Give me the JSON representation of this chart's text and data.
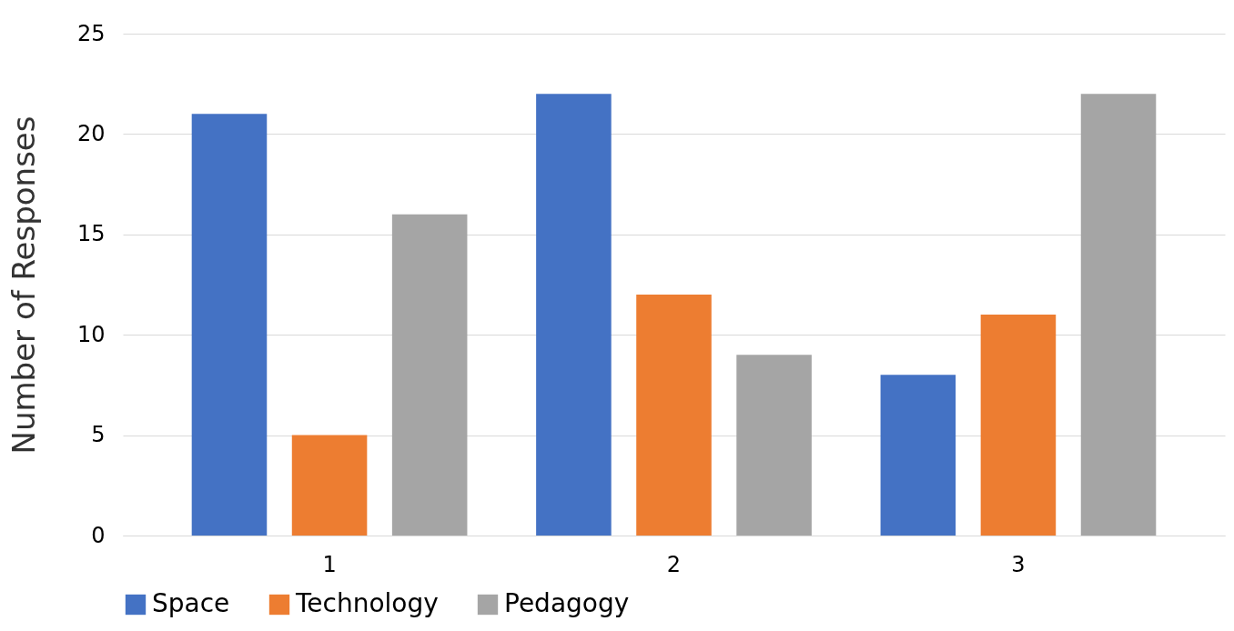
{
  "chart_data": {
    "type": "bar",
    "ylabel": "Number of Responses",
    "categories": [
      "1",
      "2",
      "3"
    ],
    "series": [
      {
        "name": "Space",
        "color": "#4472c4",
        "values": [
          21,
          22,
          8
        ]
      },
      {
        "name": "Technology",
        "color": "#ed7d31",
        "values": [
          5,
          12,
          11
        ]
      },
      {
        "name": "Pedagogy",
        "color": "#a5a5a5",
        "values": [
          16,
          9,
          22
        ]
      }
    ],
    "ylim": [
      0,
      25
    ],
    "yticks": [
      0,
      5,
      10,
      15,
      20,
      25
    ],
    "grid": "y",
    "legend": "bottom"
  }
}
